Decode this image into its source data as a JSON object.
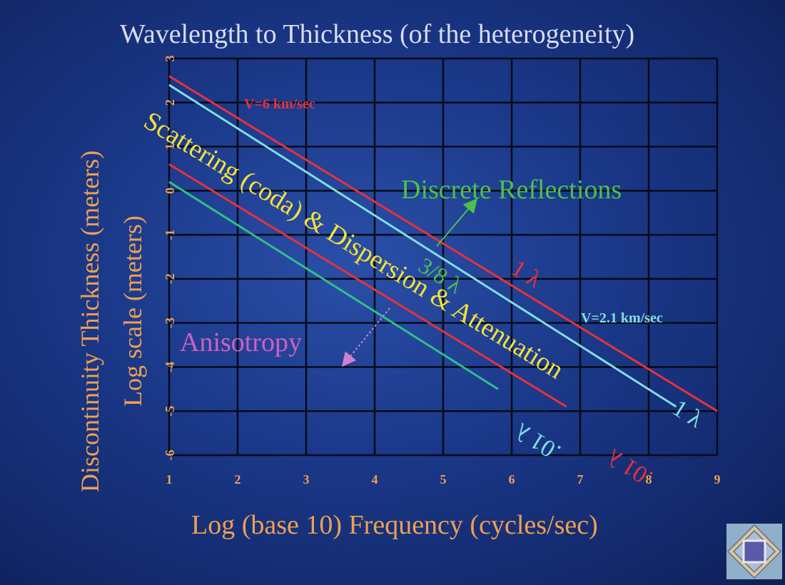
{
  "chart_data": {
    "type": "line",
    "title": "Wavelength to Thickness (of the heterogeneity)",
    "xlabel": "Log (base 10) Frequency (cycles/sec)",
    "ylabel_line1": "Discontinuity Thickness (meters)",
    "ylabel_line2": "Log scale (meters)",
    "xlim": [
      1,
      9
    ],
    "ylim": [
      -6,
      3
    ],
    "x_ticks": [
      "1",
      "2",
      "3",
      "4",
      "5",
      "6",
      "7",
      "8",
      "9"
    ],
    "y_ticks": [
      "3",
      "2",
      "1",
      "0",
      "-1",
      "-2",
      "-3",
      "-4",
      "-5",
      "-6"
    ],
    "grid": true,
    "series": [
      {
        "name": "1 λ",
        "color": "#e8313a",
        "x": [
          1,
          9
        ],
        "y": [
          2.6,
          -5.0
        ]
      },
      {
        "name": "1 λ",
        "color": "#7fe0e0",
        "x": [
          1,
          8.4
        ],
        "y": [
          2.4,
          -4.9
        ]
      },
      {
        "name": ".01 λ",
        "color": "#e8313a",
        "x": [
          1,
          6.8
        ],
        "y": [
          0.6,
          -4.9
        ]
      },
      {
        "name": ".01 λ",
        "color": "#2fc08a",
        "x": [
          1,
          5.8
        ],
        "y": [
          0.2,
          -4.5
        ]
      }
    ],
    "annotations": {
      "v6": {
        "text": "V=6 km/sec",
        "color": "#e8313a"
      },
      "v21": {
        "text": "V=2.1 km/sec",
        "color": "#7fe0e0"
      },
      "discrete": {
        "text": "Discrete Reflections",
        "color": "#4cc04c"
      },
      "three_eighths": {
        "text": "3/8 λ",
        "color": "#4cc04c"
      },
      "one_lambda_red": {
        "text": "1 λ",
        "color": "#e8313a"
      },
      "one_lambda_cyan": {
        "text": "1 λ",
        "color": "#7fe0e0"
      },
      "point01_red": {
        "text": ".01 λ",
        "color": "#e8313a"
      },
      "point01_cyan": {
        "text": ".01 λ",
        "color": "#7fe0e0"
      },
      "scattering": {
        "text": "Scattering (coda) & Dispersion & Attenuation",
        "color": "#f4e03a"
      },
      "anisotropy": {
        "text": "Anisotropy",
        "color": "#d060c0"
      }
    }
  }
}
